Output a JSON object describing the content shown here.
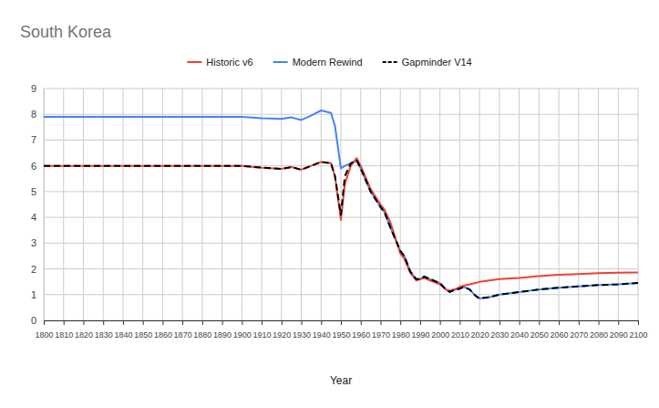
{
  "chart_data": {
    "type": "line",
    "title": "South Korea",
    "x_label": "Year",
    "x": [
      1800,
      1900,
      1910,
      1920,
      1925,
      1930,
      1935,
      1940,
      1945,
      1947,
      1950,
      1952,
      1955,
      1958,
      1960,
      1965,
      1970,
      1972,
      1975,
      1980,
      1982,
      1985,
      1988,
      1990,
      1992,
      1995,
      2000,
      2003,
      2005,
      2008,
      2010,
      2012,
      2015,
      2018,
      2020,
      2025,
      2030,
      2040,
      2050,
      2060,
      2070,
      2080,
      2090,
      2100
    ],
    "series": [
      {
        "name": "Historic v6",
        "color": "#ea4335",
        "line_style": "solid",
        "values": [
          6.0,
          6.0,
          5.93,
          5.88,
          5.95,
          5.85,
          6.0,
          6.15,
          6.1,
          5.6,
          3.9,
          5.3,
          6.0,
          6.3,
          6.0,
          5.1,
          4.5,
          4.3,
          3.8,
          2.6,
          2.4,
          1.85,
          1.55,
          1.6,
          1.65,
          1.55,
          1.4,
          1.2,
          1.15,
          1.22,
          1.3,
          1.35,
          1.4,
          1.45,
          1.5,
          1.55,
          1.6,
          1.65,
          1.72,
          1.77,
          1.8,
          1.83,
          1.85,
          1.86
        ]
      },
      {
        "name": "Modern Rewind",
        "color": "#4285f4",
        "line_style": "solid",
        "values": [
          7.9,
          7.9,
          7.85,
          7.82,
          7.88,
          7.78,
          7.95,
          8.15,
          8.05,
          7.55,
          5.9,
          6.0,
          6.1,
          6.2,
          5.9,
          5.0,
          4.4,
          4.2,
          3.6,
          2.7,
          2.5,
          1.9,
          1.6,
          1.6,
          1.7,
          1.6,
          1.45,
          1.2,
          1.1,
          1.2,
          1.23,
          1.3,
          1.2,
          0.95,
          0.85,
          0.9,
          1.0,
          1.1,
          1.2,
          1.27,
          1.32,
          1.37,
          1.4,
          1.45
        ]
      },
      {
        "name": "Gapminder V14",
        "color": "#000000",
        "line_style": "dashed",
        "values": [
          6.0,
          6.0,
          5.93,
          5.88,
          5.95,
          5.85,
          6.0,
          6.15,
          6.1,
          5.6,
          4.1,
          5.6,
          6.1,
          6.2,
          5.9,
          5.0,
          4.4,
          4.2,
          3.6,
          2.7,
          2.5,
          1.9,
          1.6,
          1.6,
          1.7,
          1.6,
          1.45,
          1.2,
          1.1,
          1.2,
          1.23,
          1.3,
          1.2,
          0.95,
          0.85,
          0.9,
          1.0,
          1.1,
          1.2,
          1.27,
          1.32,
          1.37,
          1.4,
          1.45
        ]
      }
    ],
    "xlim": [
      1800,
      2100
    ],
    "xticks": [
      1800,
      1810,
      1820,
      1830,
      1840,
      1850,
      1860,
      1870,
      1880,
      1890,
      1900,
      1910,
      1920,
      1930,
      1940,
      1950,
      1960,
      1970,
      1980,
      1990,
      2000,
      2010,
      2020,
      2030,
      2040,
      2050,
      2060,
      2070,
      2080,
      2090,
      2100
    ],
    "ylim": [
      0,
      9
    ],
    "yticks": [
      0,
      1,
      2,
      3,
      4,
      5,
      6,
      7,
      8,
      9
    ],
    "grid": true,
    "legend": "top"
  }
}
